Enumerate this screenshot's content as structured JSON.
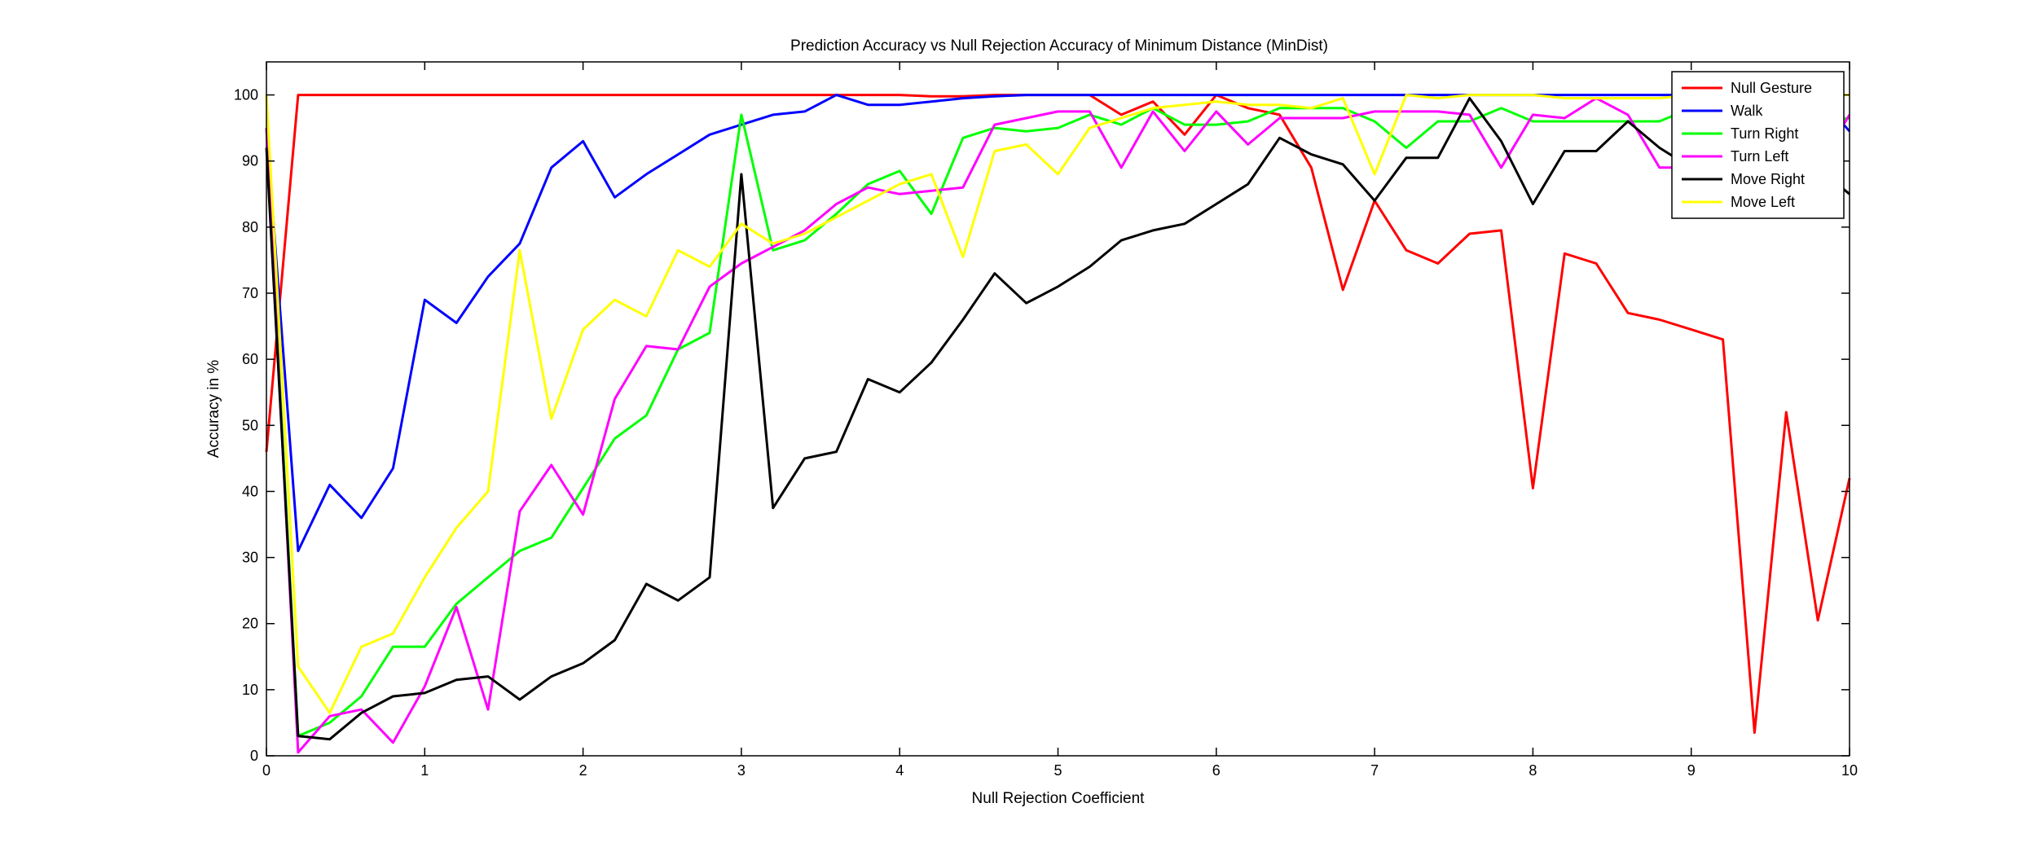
{
  "chart_data": {
    "type": "line",
    "title": "Prediction Accuracy vs Null Rejection Accuracy of Minimum Distance (MinDist)",
    "xlabel": "Null Rejection Coefficient",
    "ylabel": "Accuracy in %",
    "xlim": [
      0,
      10
    ],
    "ylim": [
      0,
      105
    ],
    "xticks": [
      0,
      1,
      2,
      3,
      4,
      5,
      6,
      7,
      8,
      9,
      10
    ],
    "yticks": [
      0,
      10,
      20,
      30,
      40,
      50,
      60,
      70,
      80,
      90,
      100
    ],
    "grid": false,
    "legend_position": "top-right",
    "x": [
      0,
      0.2,
      0.4,
      0.6,
      0.8,
      1,
      1.2,
      1.4,
      1.6,
      1.8,
      2,
      2.2,
      2.4,
      2.6,
      2.8,
      3,
      3.2,
      3.4,
      3.6,
      3.8,
      4,
      4.2,
      4.4,
      4.6,
      4.8,
      5,
      5.2,
      5.4,
      5.6,
      5.8,
      6,
      6.2,
      6.4,
      6.6,
      6.8,
      7,
      7.2,
      7.4,
      7.6,
      7.8,
      8,
      8.2,
      8.4,
      8.6,
      8.8,
      9,
      9.2,
      9.4,
      9.6,
      9.8,
      10
    ],
    "series": [
      {
        "name": "Null Gesture",
        "color": "#ff0000",
        "values": [
          46,
          100,
          100,
          100,
          100,
          100,
          100,
          100,
          100,
          100,
          100,
          100,
          100,
          100,
          100,
          100,
          100,
          100,
          100,
          100,
          100,
          99.8,
          99.8,
          100,
          100,
          100,
          100,
          97,
          99,
          94,
          100,
          98,
          97,
          89,
          70.5,
          84,
          76.5,
          74.5,
          79,
          79.5,
          40.5,
          76,
          74.5,
          67,
          66,
          64.5,
          63,
          3.5,
          52,
          20.5,
          42
        ]
      },
      {
        "name": "Walk",
        "color": "#0000ff",
        "values": [
          95,
          31,
          41,
          36,
          43.5,
          69,
          65.5,
          72.5,
          77.5,
          89,
          93,
          84.5,
          88,
          91,
          94,
          95.5,
          97,
          97.5,
          100,
          98.5,
          98.5,
          99,
          99.5,
          99.8,
          100,
          100,
          100,
          100,
          100,
          100,
          100,
          100,
          100,
          100,
          100,
          100,
          100,
          100,
          100,
          100,
          100,
          100,
          100,
          100,
          100,
          100,
          100,
          100,
          100,
          100,
          94.5
        ]
      },
      {
        "name": "Turn Right",
        "color": "#00ff00",
        "values": [
          95,
          3,
          5,
          9,
          16.5,
          16.5,
          23,
          27,
          31,
          33,
          40.5,
          48,
          51.5,
          61.5,
          64,
          97,
          76.5,
          78,
          82,
          86.5,
          88.5,
          82,
          93.5,
          95,
          94.5,
          95,
          97,
          95.5,
          98,
          95.5,
          95.5,
          96,
          98,
          98,
          98,
          96,
          92,
          96,
          96,
          98,
          96,
          96,
          96,
          96,
          96,
          98,
          96,
          96,
          96,
          96,
          96.5
        ]
      },
      {
        "name": "Turn Left",
        "color": "#ff00ff",
        "values": [
          95,
          0.5,
          6,
          7,
          2,
          10.5,
          22.5,
          7,
          37,
          44,
          36.5,
          54,
          62,
          61.5,
          71,
          74.5,
          77,
          79.5,
          83.5,
          86,
          85,
          85.5,
          86,
          95.5,
          96.5,
          97.5,
          97.5,
          89,
          97.5,
          91.5,
          97.5,
          92.5,
          96.5,
          96.5,
          96.5,
          97.5,
          97.5,
          97.5,
          97,
          89,
          97,
          96.5,
          99.5,
          97,
          89,
          89,
          89,
          89,
          89,
          89,
          97
        ]
      },
      {
        "name": "Move Right",
        "color": "#000000",
        "values": [
          92,
          3,
          2.5,
          6.5,
          9,
          9.5,
          11.5,
          12,
          8.5,
          12,
          14,
          17.5,
          26,
          23.5,
          27,
          88,
          37.5,
          45,
          46,
          57,
          55,
          59.5,
          66,
          73,
          68.5,
          71,
          74,
          78,
          79.5,
          80.5,
          83.5,
          86.5,
          93.5,
          91,
          89.5,
          84,
          90.5,
          90.5,
          99.5,
          93,
          83.5,
          91.5,
          91.5,
          96,
          92,
          89,
          89,
          89,
          89,
          89,
          85
        ]
      },
      {
        "name": "Move Left",
        "color": "#ffff00",
        "values": [
          100,
          13.5,
          6.5,
          16.5,
          18.5,
          27,
          34.5,
          40,
          76.5,
          51,
          64.5,
          69,
          66.5,
          76.5,
          74,
          80.5,
          77.5,
          79,
          81.5,
          84,
          86.5,
          88,
          75.5,
          91.5,
          92.5,
          88,
          95,
          96.5,
          98,
          98.5,
          99,
          98.5,
          98.5,
          98,
          99.5,
          88,
          100,
          99.5,
          100,
          100,
          100,
          99.5,
          99.5,
          99.5,
          99.5,
          100,
          100,
          100,
          100,
          100,
          100
        ]
      }
    ]
  }
}
